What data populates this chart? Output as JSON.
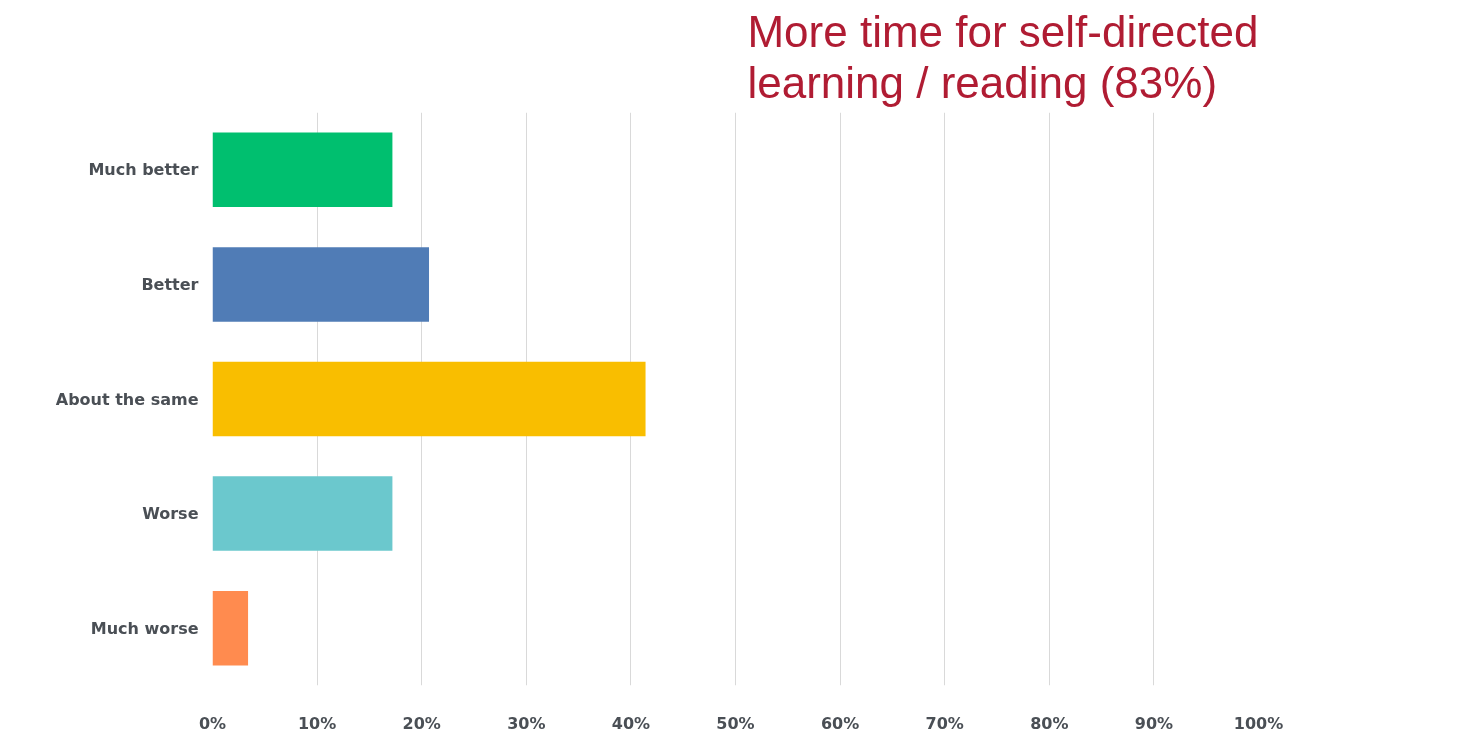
{
  "chart_data": {
    "type": "bar",
    "orientation": "horizontal",
    "title": "More time for self-directed learning / reading (83%)",
    "categories": [
      "Much better",
      "Better",
      "About the same",
      "Worse",
      "Much worse"
    ],
    "values": [
      17.2,
      20.7,
      41.4,
      17.2,
      3.4
    ],
    "colors": [
      "#00bf6f",
      "#507cb6",
      "#f9be00",
      "#6bc8cd",
      "#ff8b4f"
    ],
    "xlim": [
      0,
      100
    ],
    "xticks": [
      {
        "value": 0,
        "label": "0%"
      },
      {
        "value": 10,
        "label": "10%"
      },
      {
        "value": 20,
        "label": "20%"
      },
      {
        "value": 30,
        "label": "30%"
      },
      {
        "value": 40,
        "label": "40%"
      },
      {
        "value": 50,
        "label": "50%"
      },
      {
        "value": 60,
        "label": "60%"
      },
      {
        "value": 70,
        "label": "70%"
      },
      {
        "value": 80,
        "label": "80%"
      },
      {
        "value": 90,
        "label": "90%"
      },
      {
        "value": 100,
        "label": "100%"
      }
    ],
    "grid": "x"
  }
}
